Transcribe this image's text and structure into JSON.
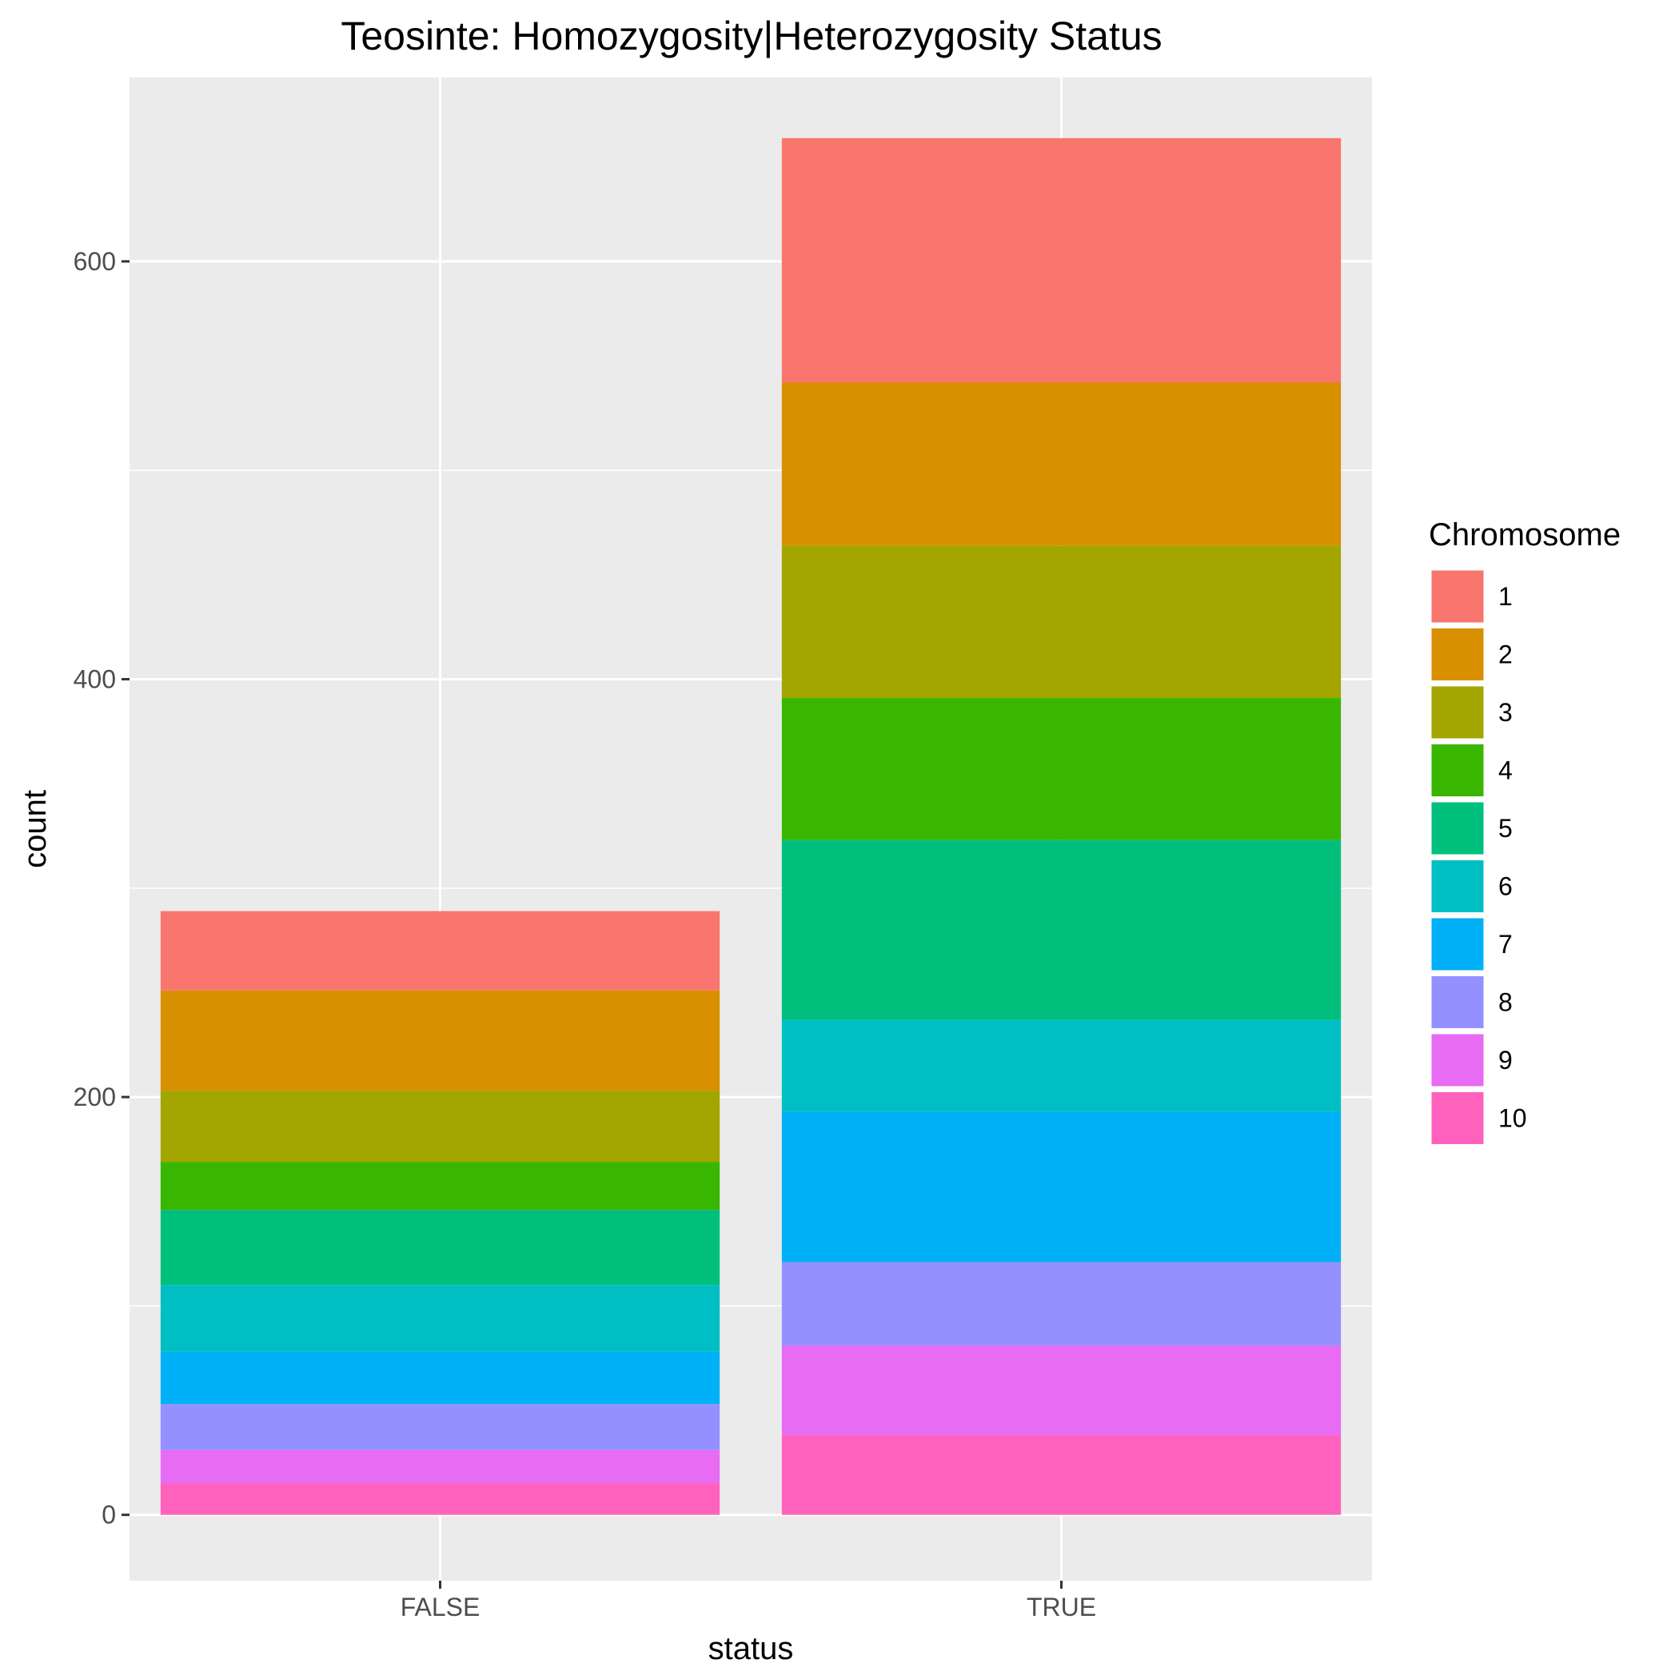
{
  "chart_data": {
    "type": "bar",
    "stacked": true,
    "title": "Teosinte: Homozygosity|Heterozygosity Status",
    "xlabel": "status",
    "ylabel": "count",
    "categories": [
      "FALSE",
      "TRUE"
    ],
    "y_ticks": [
      0,
      200,
      400,
      600
    ],
    "ylim": [
      -31.5,
      688
    ],
    "grid": true,
    "legend": {
      "title": "Chromosome",
      "position": "right"
    },
    "series": [
      {
        "name": "1",
        "color": "#F8766D",
        "values": [
          38,
          117
        ]
      },
      {
        "name": "2",
        "color": "#D89000",
        "values": [
          48,
          78
        ]
      },
      {
        "name": "3",
        "color": "#A3A500",
        "values": [
          34,
          73
        ]
      },
      {
        "name": "4",
        "color": "#39B600",
        "values": [
          23,
          68
        ]
      },
      {
        "name": "5",
        "color": "#00BF7D",
        "values": [
          36,
          86
        ]
      },
      {
        "name": "6",
        "color": "#00BFC4",
        "values": [
          32,
          44
        ]
      },
      {
        "name": "7",
        "color": "#00B0F6",
        "values": [
          25,
          72
        ]
      },
      {
        "name": "8",
        "color": "#9590FF",
        "values": [
          22,
          40
        ]
      },
      {
        "name": "9",
        "color": "#E76BF3",
        "values": [
          16,
          43
        ]
      },
      {
        "name": "10",
        "color": "#FF62BC",
        "values": [
          15,
          38
        ]
      }
    ]
  }
}
